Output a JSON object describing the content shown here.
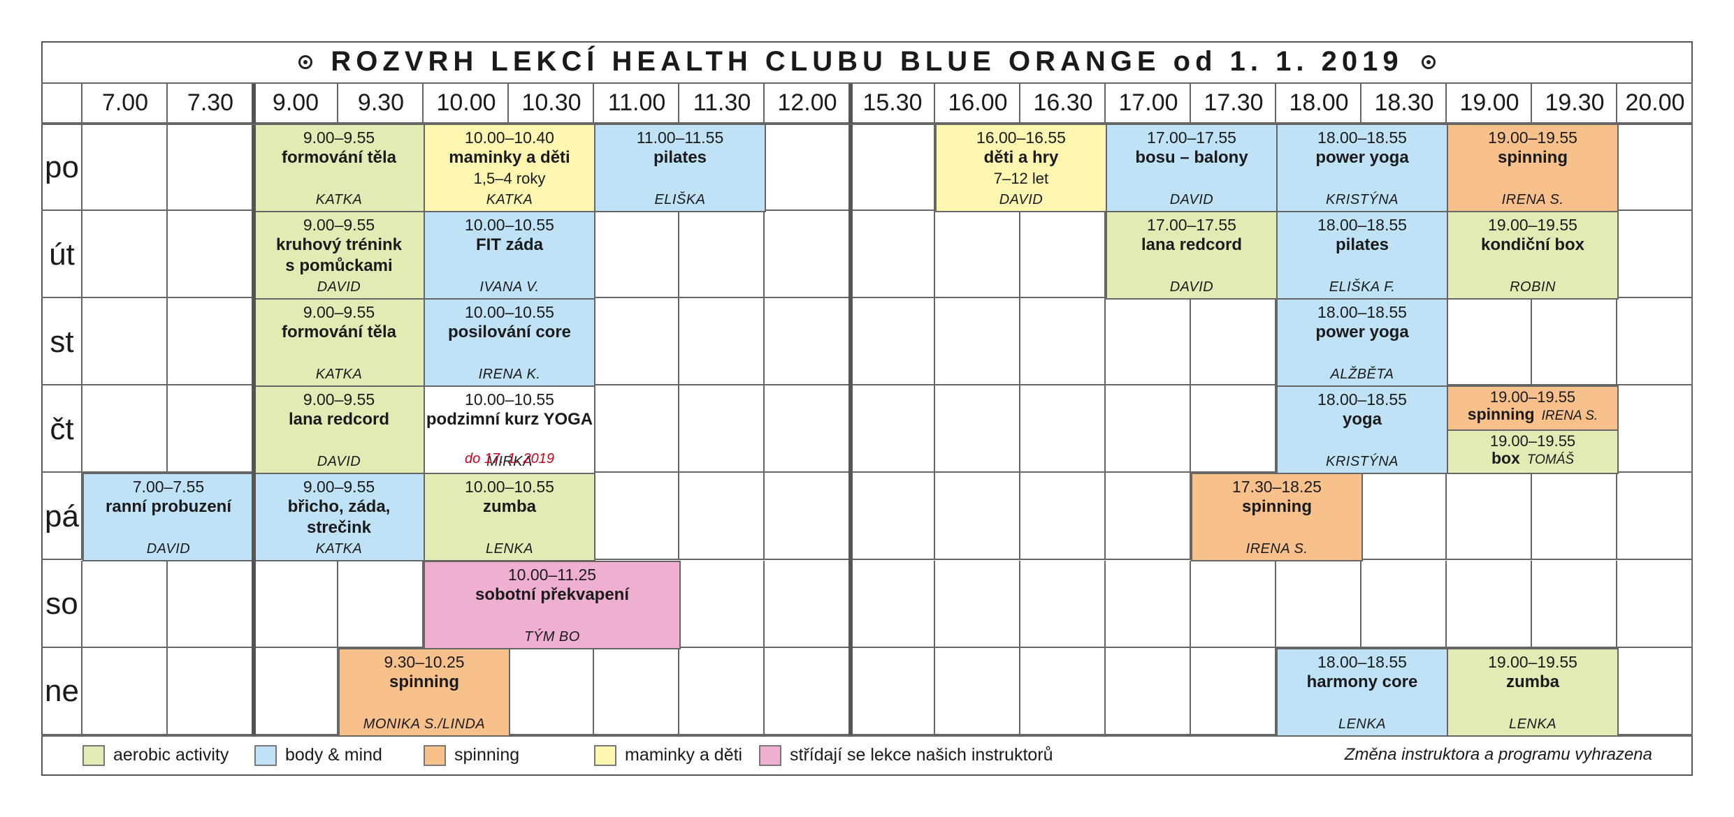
{
  "title": "ROZVRH LEKCÍ HEALTH CLUBU BLUE ORANGE od 1. 1. 2019",
  "colors": {
    "aerobic": "#e2ebb3",
    "body_mind": "#bfe2f7",
    "spinning": "#f8c08b",
    "maminky": "#fcf6b1",
    "instructors": "#efafd1"
  },
  "times": [
    "7.00",
    "7.30",
    "9.00",
    "9.30",
    "10.00",
    "10.30",
    "11.00",
    "11.30",
    "12.00",
    "15.30",
    "16.00",
    "16.30",
    "17.00",
    "17.30",
    "18.00",
    "18.30",
    "19.00",
    "19.30",
    "20.00"
  ],
  "days": [
    "po",
    "út",
    "st",
    "čt",
    "pá",
    "so",
    "ne"
  ],
  "lessons": [
    {
      "day": 0,
      "start": 2,
      "span": 2,
      "cat": "aero",
      "time": "9.00–9.55",
      "name": "formování těla",
      "sub": "",
      "instructor": "KATKA"
    },
    {
      "day": 0,
      "start": 4,
      "span": 2,
      "cat": "mama",
      "time": "10.00–10.40",
      "name": "maminky a děti",
      "sub": "1,5–4 roky",
      "instructor": "KATKA"
    },
    {
      "day": 0,
      "start": 6,
      "span": 2,
      "cat": "body",
      "time": "11.00–11.55",
      "name": "pilates",
      "sub": "",
      "instructor": "ELIŠKA"
    },
    {
      "day": 0,
      "start": 10,
      "span": 2,
      "cat": "mama",
      "time": "16.00–16.55",
      "name": "děti a hry",
      "sub": "7–12 let",
      "instructor": "DAVID"
    },
    {
      "day": 0,
      "start": 12,
      "span": 2,
      "cat": "body",
      "time": "17.00–17.55",
      "name": "bosu – balony",
      "sub": "",
      "instructor": "DAVID"
    },
    {
      "day": 0,
      "start": 14,
      "span": 2,
      "cat": "body",
      "time": "18.00–18.55",
      "name": "power yoga",
      "sub": "",
      "instructor": "KRISTÝNA"
    },
    {
      "day": 0,
      "start": 16,
      "span": 2,
      "cat": "spin",
      "time": "19.00–19.55",
      "name": "spinning",
      "sub": "",
      "instructor": "IRENA S."
    },
    {
      "day": 1,
      "start": 2,
      "span": 2,
      "cat": "aero",
      "time": "9.00–9.55",
      "name": "kruhový trénink\ns pomůckami",
      "sub": "",
      "instructor": "DAVID"
    },
    {
      "day": 1,
      "start": 4,
      "span": 2,
      "cat": "body",
      "time": "10.00–10.55",
      "name": "FIT záda",
      "sub": "",
      "instructor": "IVANA V."
    },
    {
      "day": 1,
      "start": 12,
      "span": 2,
      "cat": "aero",
      "time": "17.00–17.55",
      "name": "lana redcord",
      "sub": "",
      "instructor": "DAVID"
    },
    {
      "day": 1,
      "start": 14,
      "span": 2,
      "cat": "body",
      "time": "18.00–18.55",
      "name": "pilates",
      "sub": "",
      "instructor": "ELIŠKA F."
    },
    {
      "day": 1,
      "start": 16,
      "span": 2,
      "cat": "aero",
      "time": "19.00–19.55",
      "name": "kondiční box",
      "sub": "",
      "instructor": "ROBIN"
    },
    {
      "day": 2,
      "start": 2,
      "span": 2,
      "cat": "aero",
      "time": "9.00–9.55",
      "name": "formování těla",
      "sub": "",
      "instructor": "KATKA"
    },
    {
      "day": 2,
      "start": 4,
      "span": 2,
      "cat": "body",
      "time": "10.00–10.55",
      "name": "posilování core",
      "sub": "",
      "instructor": "IRENA K."
    },
    {
      "day": 2,
      "start": 14,
      "span": 2,
      "cat": "body",
      "time": "18.00–18.55",
      "name": "power yoga",
      "sub": "",
      "instructor": "ALŽBĚTA"
    },
    {
      "day": 3,
      "start": 2,
      "span": 2,
      "cat": "aero",
      "time": "9.00–9.55",
      "name": "lana redcord",
      "sub": "",
      "instructor": "DAVID"
    },
    {
      "day": 3,
      "start": 4,
      "span": 2,
      "cat": "white",
      "time": "10.00–10.55",
      "name": "podzimní kurz YOGA",
      "sub": "",
      "note": "do 17. 1. 2019",
      "instructor": "MIRKA"
    },
    {
      "day": 3,
      "start": 14,
      "span": 2,
      "cat": "body",
      "time": "18.00–18.55",
      "name": "yoga",
      "sub": "",
      "instructor": "KRISTÝNA"
    },
    {
      "day": 4,
      "start": 0,
      "span": 2,
      "cat": "body",
      "time": "7.00–7.55",
      "name": "ranní probuzení",
      "sub": "",
      "instructor": "DAVID"
    },
    {
      "day": 4,
      "start": 2,
      "span": 2,
      "cat": "body",
      "time": "9.00–9.55",
      "name": "břicho, záda,\nstrečink",
      "sub": "",
      "instructor": "KATKA"
    },
    {
      "day": 4,
      "start": 4,
      "span": 2,
      "cat": "aero",
      "time": "10.00–10.55",
      "name": "zumba",
      "sub": "",
      "instructor": "LENKA"
    },
    {
      "day": 4,
      "start": 13,
      "span": 2,
      "cat": "spin",
      "time": "17.30–18.25",
      "name": "spinning",
      "sub": "",
      "instructor": "IRENA S."
    },
    {
      "day": 5,
      "start": 4,
      "span": 3,
      "cat": "pink",
      "time": "10.00–11.25",
      "name": "sobotní překvapení",
      "sub": "",
      "instructor": "TÝM BO"
    },
    {
      "day": 6,
      "start": 3,
      "span": 2,
      "cat": "spin",
      "time": "9.30–10.25",
      "name": "spinning",
      "sub": "",
      "instructor": "MONIKA S./LINDA"
    },
    {
      "day": 6,
      "start": 14,
      "span": 2,
      "cat": "body",
      "time": "18.00–18.55",
      "name": "harmony core",
      "sub": "",
      "instructor": "LENKA"
    },
    {
      "day": 6,
      "start": 16,
      "span": 2,
      "cat": "aero",
      "time": "19.00–19.55",
      "name": "zumba",
      "sub": "",
      "instructor": "LENKA"
    }
  ],
  "split_lessons": [
    {
      "day": 3,
      "start": 16,
      "span": 2,
      "half": "top",
      "cat": "spin",
      "time": "19.00–19.55",
      "name": "spinning",
      "instructor": "IRENA S."
    },
    {
      "day": 3,
      "start": 16,
      "span": 2,
      "half": "bottom",
      "cat": "aero",
      "time": "19.00–19.55",
      "name": "box",
      "instructor": "TOMÁŠ"
    }
  ],
  "legend": [
    {
      "cat": "aero",
      "label": "aerobic activity"
    },
    {
      "cat": "body",
      "label": "body & mind"
    },
    {
      "cat": "spin",
      "label": "spinning"
    },
    {
      "cat": "mama",
      "label": "maminky a děti"
    },
    {
      "cat": "pink",
      "label": "střídají se lekce našich instruktorů"
    }
  ],
  "note": "Změna instruktora a programu vyhrazena"
}
